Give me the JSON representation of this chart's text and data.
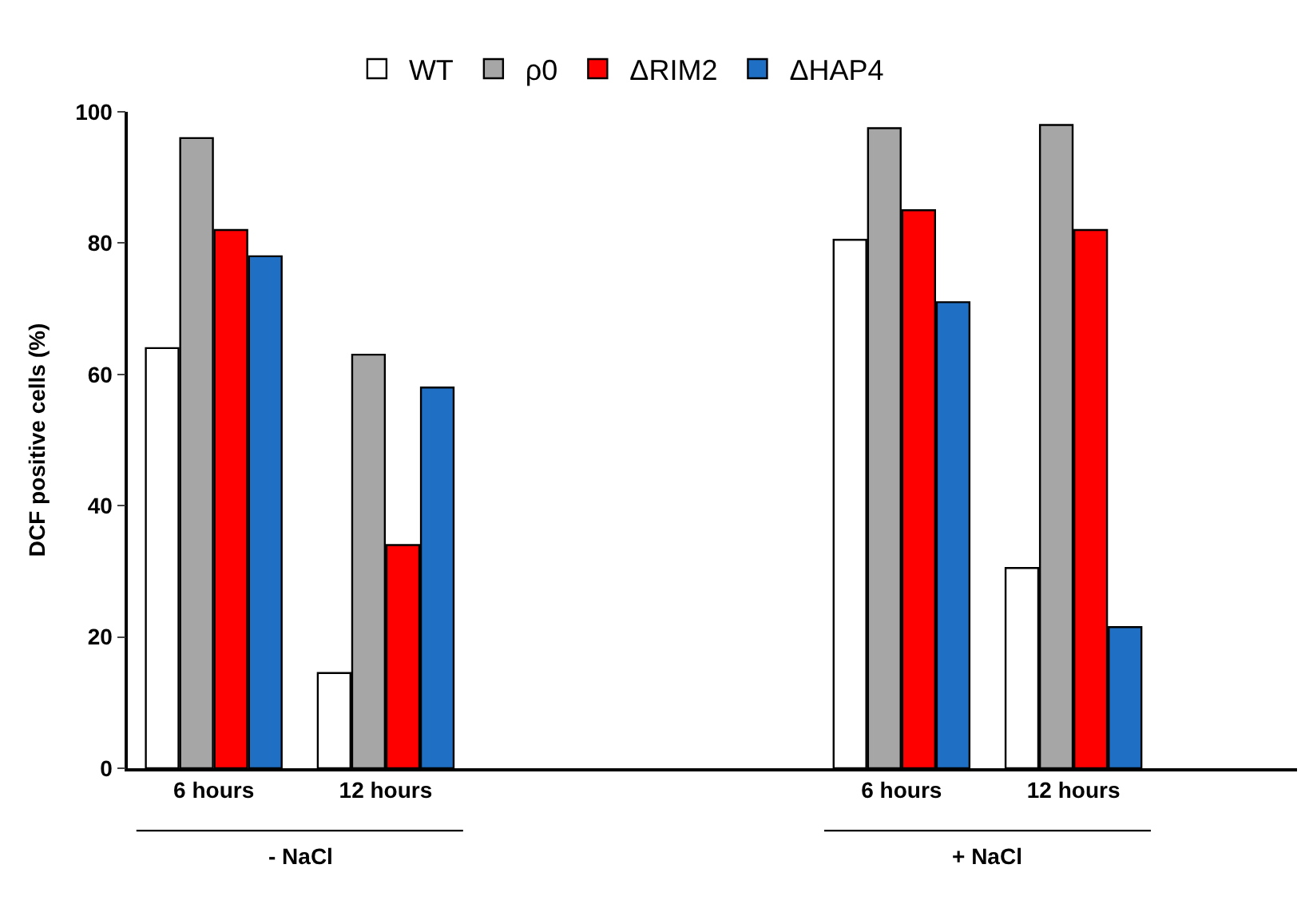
{
  "chart_data": {
    "type": "bar",
    "ylabel": "DCF positive cells (%)",
    "categories": [
      "6 hours",
      "12 hours",
      null,
      null,
      "6 hours",
      "12 hours"
    ],
    "series": [
      {
        "name": "WT",
        "color": "#ffffff",
        "values": [
          64,
          14.5,
          null,
          null,
          80.5,
          30.5
        ]
      },
      {
        "name": "ρ0",
        "color": "#a6a6a6",
        "values": [
          96,
          63,
          null,
          null,
          97.5,
          98
        ]
      },
      {
        "name": "ΔRIM2",
        "color": "#ff0000",
        "values": [
          82,
          34,
          null,
          null,
          85,
          82
        ]
      },
      {
        "name": "ΔHAP4",
        "color": "#1f6fc5",
        "values": [
          78,
          58,
          null,
          null,
          71,
          21.5
        ]
      }
    ],
    "ylim": [
      0,
      100
    ],
    "yticks": [
      0,
      20,
      40,
      60,
      80,
      100
    ],
    "legend": "top",
    "annotations": [
      "- NaCl",
      "+ NaCl"
    ]
  }
}
